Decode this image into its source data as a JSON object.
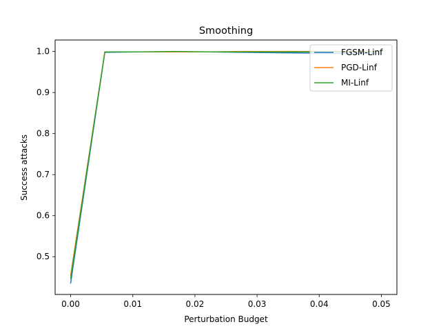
{
  "chart_data": {
    "type": "line",
    "title": "Smoothing",
    "xlabel": "Perturbation Budget",
    "ylabel": "Success attacks",
    "xlim": [
      -0.0025,
      0.0525
    ],
    "ylim": [
      0.408,
      1.028
    ],
    "xticks": [
      0.0,
      0.01,
      0.02,
      0.03,
      0.04,
      0.05
    ],
    "xtick_labels": [
      "0.00",
      "0.01",
      "0.02",
      "0.03",
      "0.04",
      "0.05"
    ],
    "yticks": [
      0.5,
      0.6,
      0.7,
      0.8,
      0.9,
      1.0
    ],
    "ytick_labels": [
      "0.5",
      "0.6",
      "0.7",
      "0.8",
      "0.9",
      "1.0"
    ],
    "grid": false,
    "legend_position": "top-right",
    "x": [
      0.0,
      0.0055,
      0.0111,
      0.0166,
      0.0222,
      0.0277,
      0.0333,
      0.0388,
      0.0444,
      0.05
    ],
    "series": [
      {
        "name": "FGSM-Linf",
        "color": "#1f77b4",
        "values": [
          0.436,
          0.998,
          0.999,
          0.999,
          0.999,
          0.998,
          0.997,
          0.996,
          0.995,
          0.995
        ]
      },
      {
        "name": "PGD-Linf",
        "color": "#ff7f0e",
        "values": [
          0.455,
          0.999,
          0.999,
          0.999,
          0.999,
          1.0,
          1.0,
          1.0,
          1.0,
          1.0
        ]
      },
      {
        "name": "MI-Linf",
        "color": "#2ca02c",
        "values": [
          0.447,
          0.999,
          0.999,
          1.0,
          0.999,
          0.999,
          0.999,
          0.999,
          0.999,
          0.999
        ]
      }
    ]
  }
}
